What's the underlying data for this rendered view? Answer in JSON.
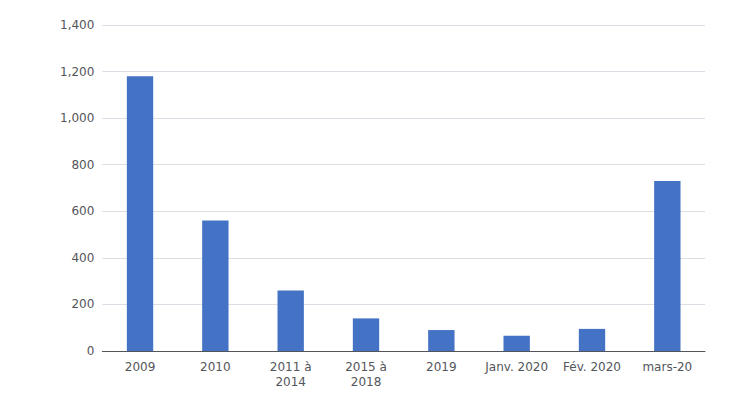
{
  "chart_data": {
    "type": "bar",
    "categories": [
      "2009",
      "2010",
      "2011 à\n2014",
      "2015 à\n2018",
      "2019",
      "Janv. 2020",
      "Fév. 2020",
      "mars-20"
    ],
    "values": [
      1180,
      560,
      260,
      140,
      90,
      65,
      95,
      730
    ],
    "color": "#4472C4",
    "ylim": [
      0,
      1400
    ],
    "yticks": [
      0,
      200,
      400,
      600,
      800,
      1000,
      1200,
      1400
    ],
    "grid": true
  }
}
